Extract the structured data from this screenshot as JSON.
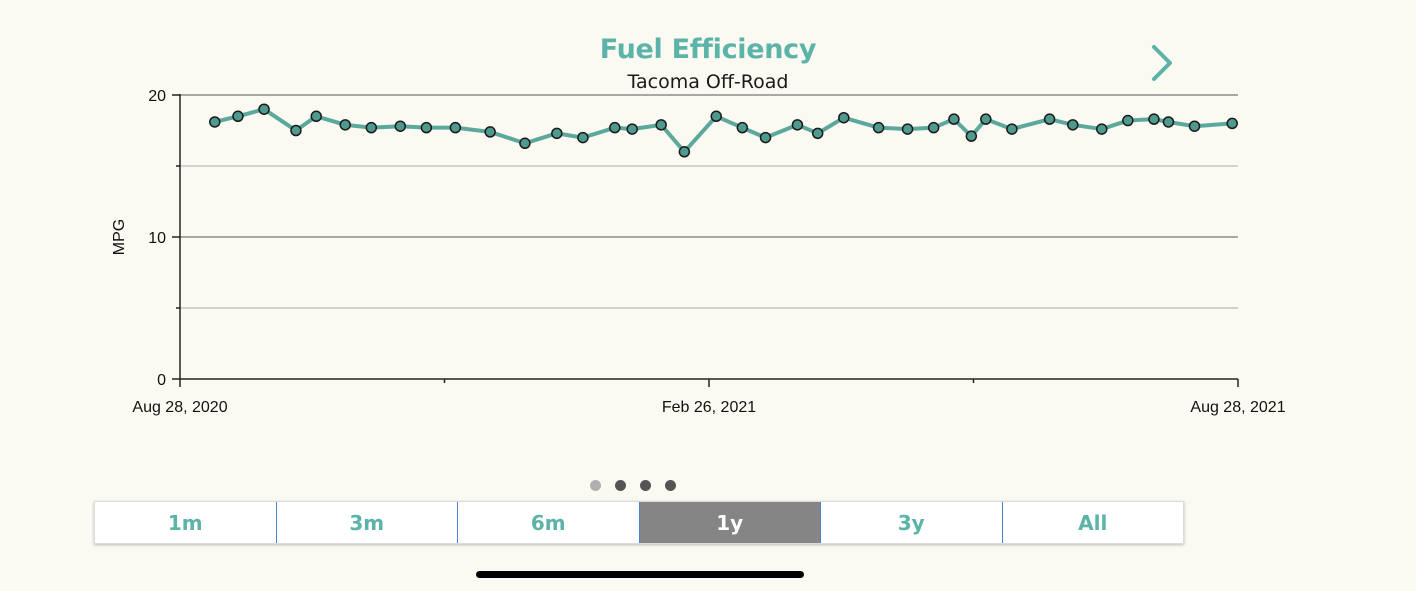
{
  "chart_data": {
    "type": "line",
    "title": "Fuel Efficiency",
    "subtitle": "Tacoma Off-Road",
    "ylabel": "MPG",
    "xlabel": "",
    "ylim": [
      0,
      20
    ],
    "y_ticks": [
      0,
      10,
      20
    ],
    "x_tick_labels": [
      "Aug 28, 2020",
      "Feb 26, 2021",
      "Aug 28, 2021"
    ],
    "xlim": [
      "2020-08-28",
      "2021-08-28"
    ],
    "grid": true,
    "line_color": "#5ca89c",
    "point_fill": "#4e9a8f",
    "series": [
      {
        "x": [
          "2020-09-09",
          "2020-09-17",
          "2020-09-26",
          "2020-10-07",
          "2020-10-14",
          "2020-10-24",
          "2020-11-02",
          "2020-11-12",
          "2020-11-21",
          "2020-12-01",
          "2020-12-13",
          "2020-12-25",
          "2021-01-05",
          "2021-01-14",
          "2021-01-25",
          "2021-01-31",
          "2021-02-10",
          "2021-02-18",
          "2021-02-29",
          "2021-03-10",
          "2021-03-18",
          "2021-03-29",
          "2021-04-05",
          "2021-04-14",
          "2021-04-26",
          "2021-05-06",
          "2021-05-15",
          "2021-05-22",
          "2021-05-28",
          "2021-06-02",
          "2021-06-11",
          "2021-06-24",
          "2021-07-02",
          "2021-07-12",
          "2021-07-21",
          "2021-07-30",
          "2021-08-04",
          "2021-08-13",
          "2021-08-26"
        ],
        "values": [
          18.1,
          18.5,
          19.0,
          17.5,
          18.5,
          17.9,
          17.7,
          17.8,
          17.7,
          17.7,
          17.4,
          16.6,
          17.3,
          17.0,
          17.7,
          17.6,
          17.9,
          16.0,
          18.5,
          17.7,
          17.0,
          17.9,
          17.3,
          18.4,
          17.7,
          17.6,
          17.7,
          18.3,
          17.1,
          18.3,
          17.6,
          18.3,
          17.9,
          17.6,
          18.2,
          18.3,
          18.1,
          17.8,
          18.0
        ]
      }
    ]
  },
  "navigation": {
    "next_icon": "chevron-right-icon",
    "page_dots": [
      {
        "active": true
      },
      {
        "active": false
      },
      {
        "active": false
      },
      {
        "active": false
      }
    ]
  },
  "range_selector": {
    "options": [
      "1m",
      "3m",
      "6m",
      "1y",
      "3y",
      "All"
    ],
    "selected": "1y"
  },
  "colors": {
    "accent": "#5cb3a8",
    "background": "#fbfaf2",
    "selected_range_bg": "#858585",
    "divider": "#4a7fd6"
  }
}
